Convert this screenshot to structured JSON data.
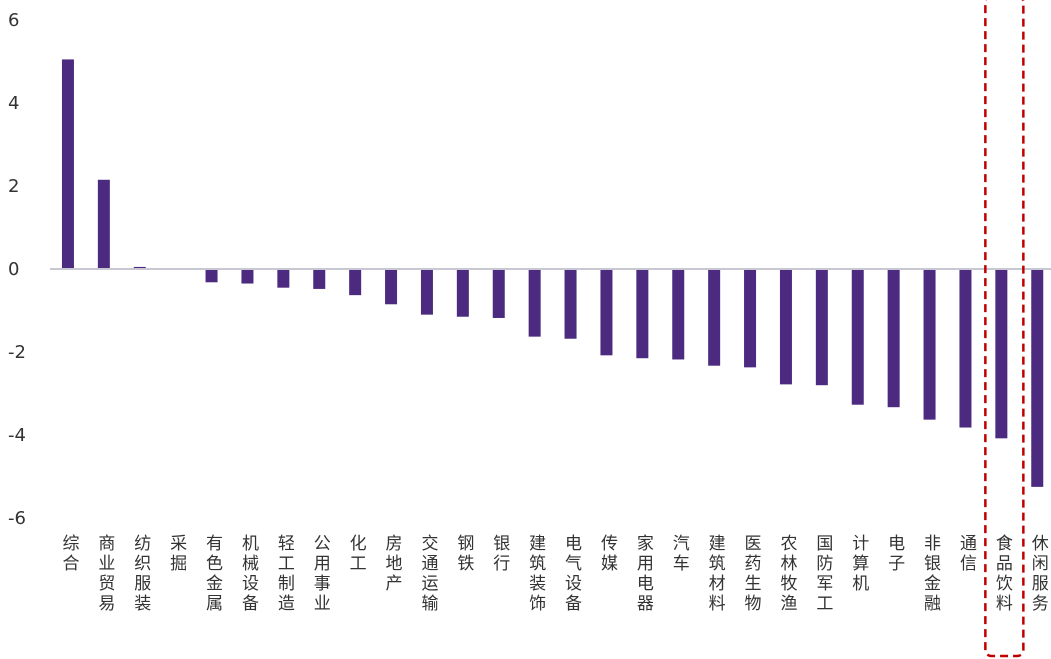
{
  "chart_data": {
    "type": "bar",
    "title": "",
    "xlabel": "",
    "ylabel": "",
    "ylim": [
      -6,
      6
    ],
    "yticks": [
      6,
      4,
      2,
      0,
      -2,
      -4,
      -6
    ],
    "grid": false,
    "legend": "none",
    "bar_color": "#4B2A7F",
    "axis_color": "#C8C8D2",
    "highlight_color": "#C00000",
    "highlight_category": "食品饮料",
    "categories": [
      "综合",
      "商业贸易",
      "纺织服装",
      "采掘",
      "有色金属",
      "机械设备",
      "轻工制造",
      "公用事业",
      "化工",
      "房地产",
      "交通运输",
      "钢铁",
      "银行",
      "建筑装饰",
      "电气设备",
      "传媒",
      "家用电器",
      "汽车",
      "建筑材料",
      "医药生物",
      "农林牧渔",
      "国防军工",
      "计算机",
      "电子",
      "非银金融",
      "通信",
      "食品饮料",
      "休闲服务"
    ],
    "values": [
      5.05,
      2.15,
      0.05,
      0.0,
      -0.32,
      -0.35,
      -0.45,
      -0.48,
      -0.63,
      -0.85,
      -1.1,
      -1.15,
      -1.18,
      -1.63,
      -1.68,
      -2.08,
      -2.15,
      -2.18,
      -2.33,
      -2.37,
      -2.78,
      -2.8,
      -3.27,
      -3.33,
      -3.63,
      -3.82,
      -4.08,
      -5.25
    ]
  }
}
